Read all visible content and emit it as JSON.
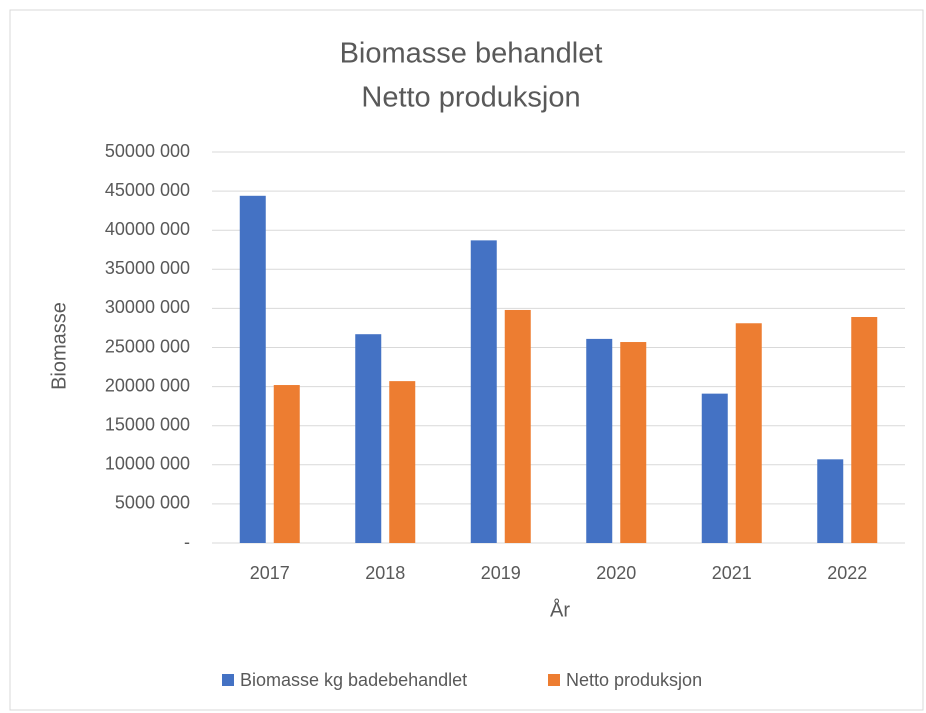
{
  "chart_data": {
    "type": "bar",
    "title": [
      "Biomasse behandlet",
      "Netto produksjon"
    ],
    "x_label": "År",
    "y_label": "Biomasse",
    "categories": [
      "2017",
      "2018",
      "2019",
      "2020",
      "2021",
      "2022"
    ],
    "series": [
      {
        "name": "Biomasse kg badebehandlet",
        "color": "#4472c4",
        "values": [
          44400000,
          26700000,
          38700000,
          26100000,
          19100000,
          10700000
        ]
      },
      {
        "name": "Netto produksjon",
        "color": "#ed7d31",
        "values": [
          20200000,
          20700000,
          29800000,
          25700000,
          28100000,
          28900000
        ]
      }
    ],
    "ylim": [
      0,
      50000000
    ],
    "yticks": [
      {
        "value": 0,
        "label": "-"
      },
      {
        "value": 5000000,
        "label": "5000 000"
      },
      {
        "value": 10000000,
        "label": "10000 000"
      },
      {
        "value": 15000000,
        "label": "15000 000"
      },
      {
        "value": 20000000,
        "label": "20000 000"
      },
      {
        "value": 25000000,
        "label": "25000 000"
      },
      {
        "value": 30000000,
        "label": "30000 000"
      },
      {
        "value": 35000000,
        "label": "35000 000"
      },
      {
        "value": 40000000,
        "label": "40000 000"
      },
      {
        "value": 45000000,
        "label": "45000 000"
      },
      {
        "value": 50000000,
        "label": "50000 000"
      }
    ],
    "grid": true,
    "legend": "bottom"
  }
}
